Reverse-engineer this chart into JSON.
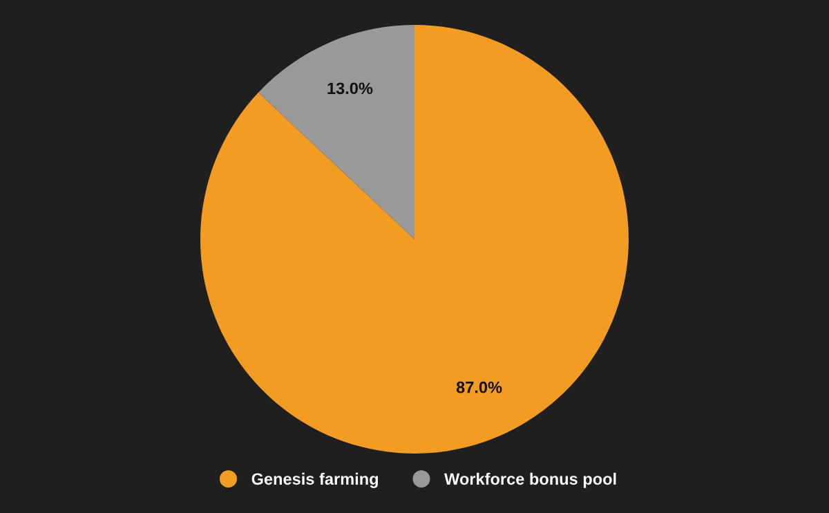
{
  "chart_data": {
    "type": "pie",
    "categories": [
      "Genesis farming",
      "Workforce bonus pool"
    ],
    "values": [
      87.0,
      13.0
    ],
    "colors": [
      "#f39c24",
      "#999999"
    ],
    "value_labels": [
      "87.0%",
      "13.0%"
    ],
    "legend": "bottom"
  }
}
